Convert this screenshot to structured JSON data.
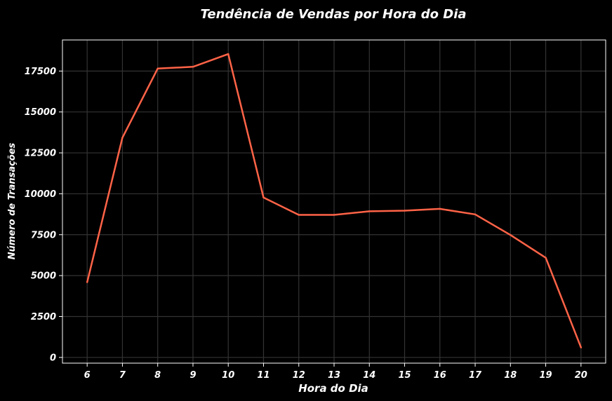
{
  "chart_data": {
    "type": "line",
    "title": "Tendência de Vendas por Hora do Dia",
    "xlabel": "Hora do Dia",
    "ylabel": "Número de Transações",
    "x": [
      6,
      7,
      8,
      9,
      10,
      11,
      12,
      13,
      14,
      15,
      16,
      17,
      18,
      19,
      20
    ],
    "x_tick_labels": [
      "6",
      "7",
      "8",
      "9",
      "10",
      "11",
      "12",
      "13",
      "14",
      "15",
      "16",
      "17",
      "18",
      "19",
      "20"
    ],
    "y_ticks": [
      0,
      2500,
      5000,
      7500,
      10000,
      12500,
      15000,
      17500
    ],
    "y_tick_labels": [
      "0",
      "2500",
      "5000",
      "7500",
      "10000",
      "12500",
      "15000",
      "17500"
    ],
    "xlim": [
      5.3,
      20.7
    ],
    "ylim": [
      -350,
      19400
    ],
    "series": [
      {
        "values": [
          4600,
          13430,
          17650,
          17760,
          18540,
          9770,
          8710,
          8710,
          8930,
          8970,
          9080,
          8740,
          7480,
          6090,
          610
        ],
        "color": "#ff6347"
      }
    ],
    "grid": true,
    "background": "#000000",
    "text_color": "#ffffff",
    "grid_color": "#333333"
  }
}
